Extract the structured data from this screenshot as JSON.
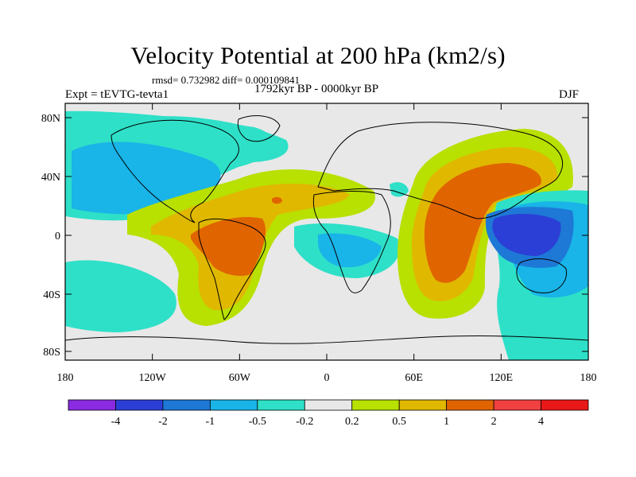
{
  "title": "Velocity Potential at 200 hPa (km2/s)",
  "stats_line": "rmsd= 0.732982 diff= 0.000109841",
  "experiment": "Expt = tEVTG-tevta1",
  "period": "1792kyr BP - 0000kyr BP",
  "season": "DJF",
  "latitude_labels": [
    "80N",
    "40N",
    "0",
    "40S",
    "80S"
  ],
  "longitude_labels": [
    "180",
    "120W",
    "60W",
    "0",
    "60E",
    "120E",
    "180"
  ],
  "colorbar": {
    "colors": [
      "#8a2be2",
      "#2b3fd6",
      "#1e78d6",
      "#19b4e8",
      "#2ee0c8",
      "#e8e8e8",
      "#b8e000",
      "#e0b800",
      "#e06400",
      "#f04040",
      "#e81818"
    ],
    "labels": [
      "-4",
      "-2",
      "-1",
      "-0.5",
      "-0.2",
      "0.2",
      "0.5",
      "1",
      "2",
      "4"
    ]
  }
}
